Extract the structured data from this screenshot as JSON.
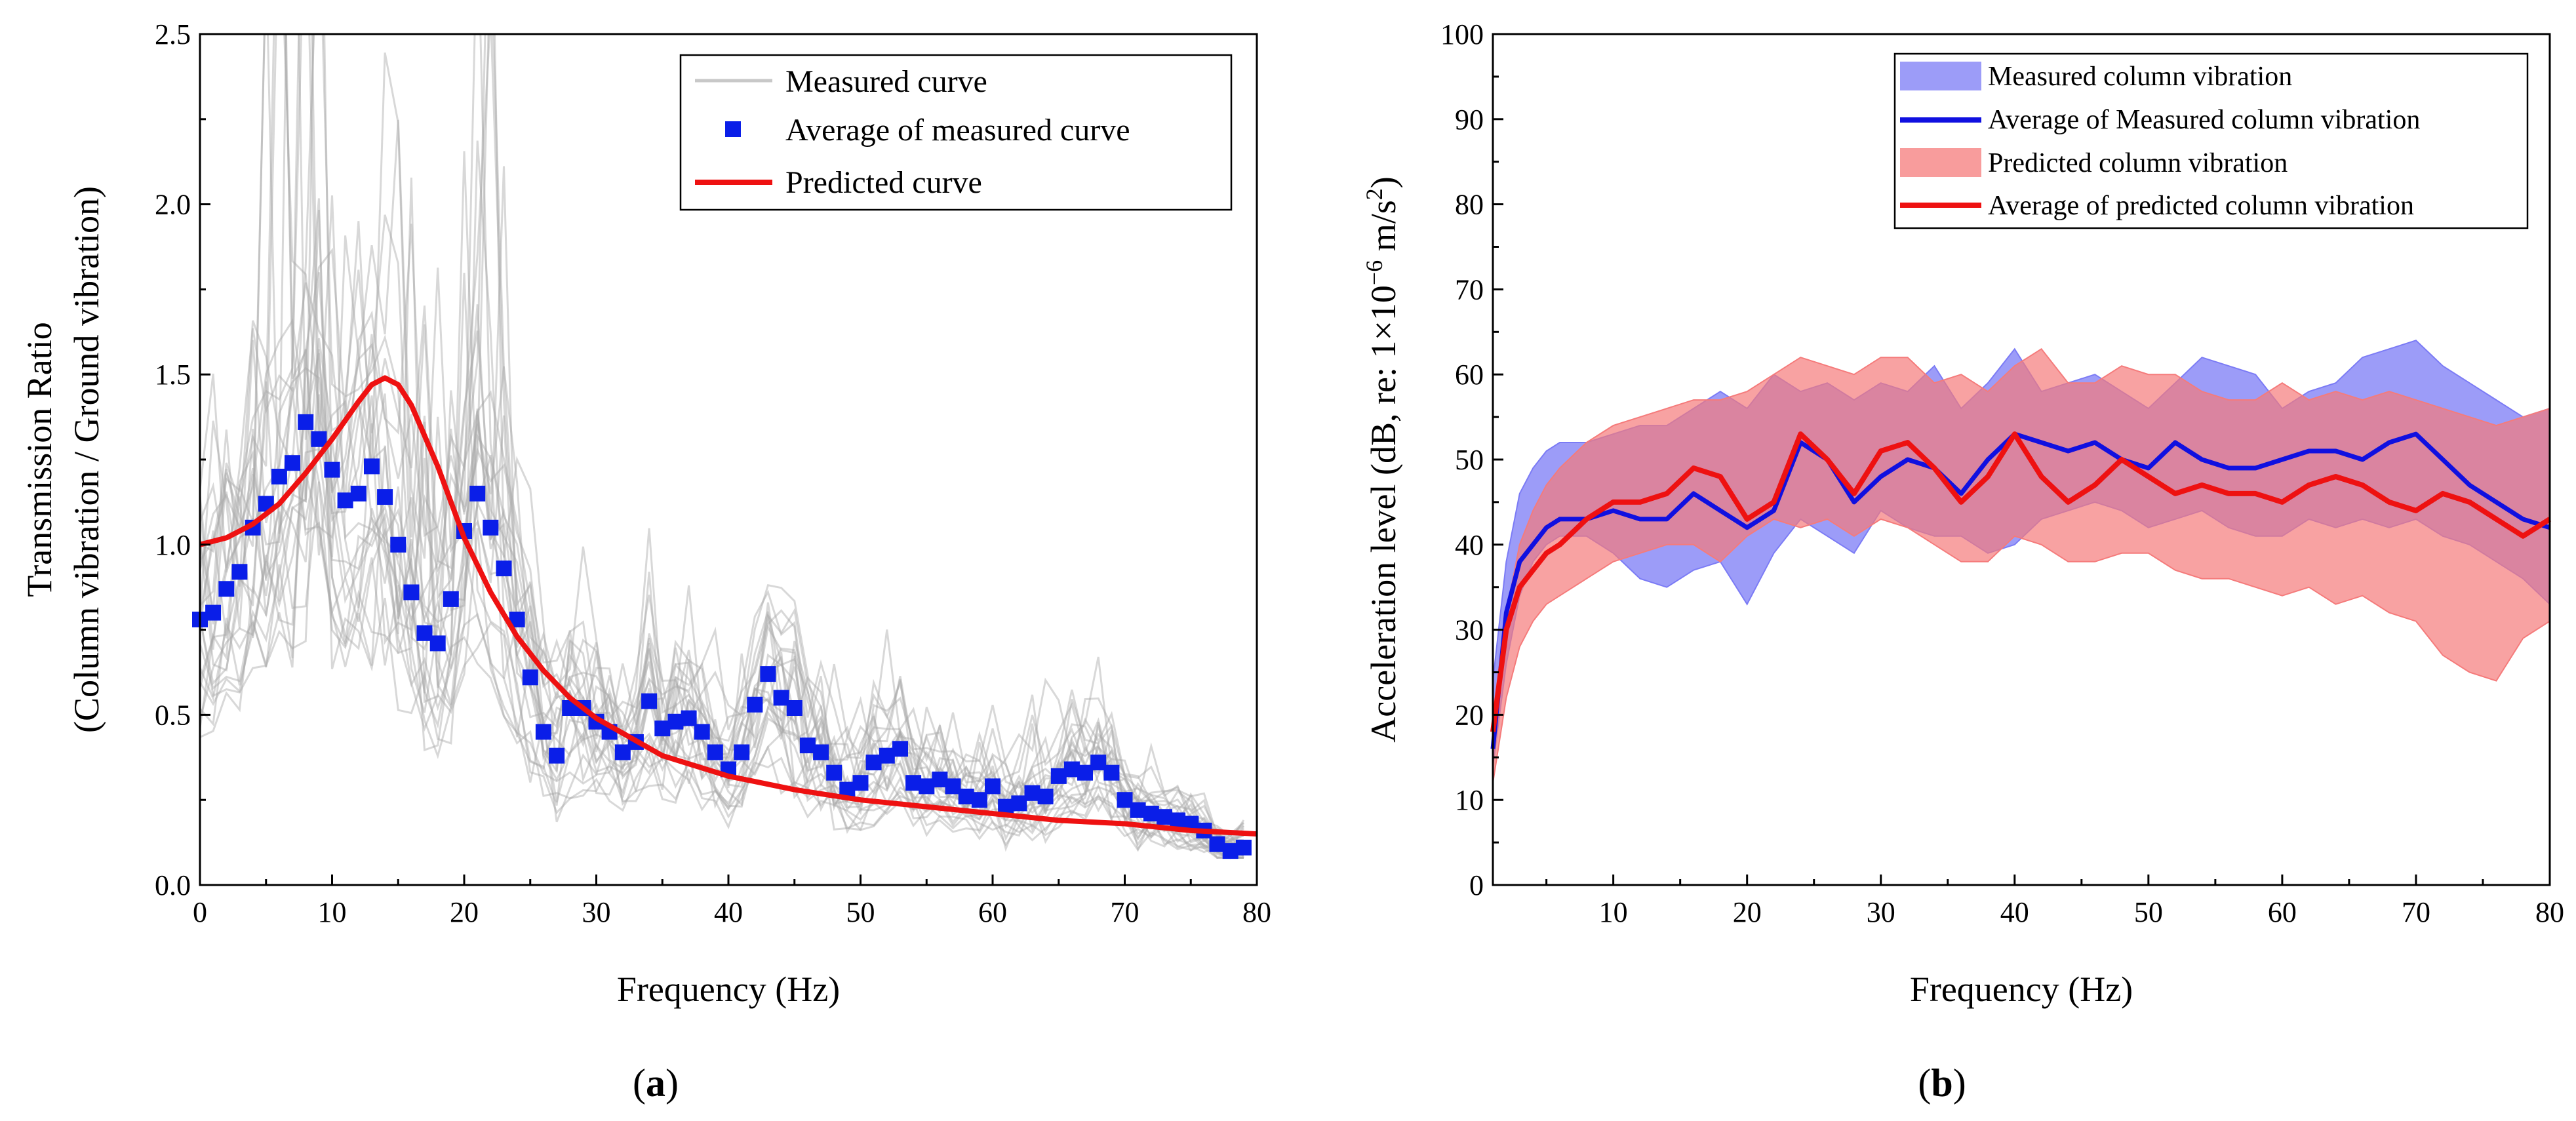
{
  "chart_data": [
    {
      "id": "a",
      "type": "line",
      "caption": "(a)",
      "caption_letter": "a",
      "xlabel": "Frequency (Hz)",
      "ylabel_line1": "Transmission Ratio",
      "ylabel_line2": "(Column vibration / Ground vibration)",
      "xlim": [
        0,
        80
      ],
      "ylim": [
        0,
        2.5
      ],
      "xticks": [
        0,
        10,
        20,
        30,
        40,
        50,
        60,
        70,
        80
      ],
      "yticks": [
        0.0,
        0.5,
        1.0,
        1.5,
        2.0,
        2.5
      ],
      "ytick_labels": [
        "0.0",
        "0.5",
        "1.0",
        "1.5",
        "2.0",
        "2.5"
      ],
      "legend": {
        "position": "top-right",
        "entries": [
          "Measured curve",
          "Average of measured curve",
          "Predicted curve"
        ]
      },
      "colors": {
        "measured": "#a9a9a9",
        "average": "#0a1ee8",
        "predicted": "#ee1111"
      },
      "series": [
        {
          "name": "Average of measured curve",
          "style": "square-marker",
          "x": [
            0,
            1,
            2,
            3,
            4,
            5,
            6,
            7,
            8,
            9,
            10,
            11,
            12,
            13,
            14,
            15,
            16,
            17,
            18,
            19,
            20,
            21,
            22,
            23,
            24,
            25,
            26,
            27,
            28,
            29,
            30,
            31,
            32,
            33,
            34,
            35,
            36,
            37,
            38,
            39,
            40,
            41,
            42,
            43,
            44,
            45,
            46,
            47,
            48,
            49,
            50,
            51,
            52,
            53,
            54,
            55,
            56,
            57,
            58,
            59,
            60,
            61,
            62,
            63,
            64,
            65,
            66,
            67,
            68,
            69,
            70,
            71,
            72,
            73,
            74,
            75,
            76,
            77,
            78,
            79
          ],
          "y": [
            0.78,
            0.8,
            0.87,
            0.92,
            1.05,
            1.12,
            1.2,
            1.24,
            1.36,
            1.31,
            1.22,
            1.13,
            1.15,
            1.23,
            1.14,
            1.0,
            0.86,
            0.74,
            0.71,
            0.84,
            1.04,
            1.15,
            1.05,
            0.93,
            0.78,
            0.61,
            0.45,
            0.38,
            0.52,
            0.52,
            0.48,
            0.45,
            0.39,
            0.42,
            0.54,
            0.46,
            0.48,
            0.49,
            0.45,
            0.39,
            0.34,
            0.39,
            0.53,
            0.62,
            0.55,
            0.52,
            0.41,
            0.39,
            0.33,
            0.28,
            0.3,
            0.36,
            0.38,
            0.4,
            0.3,
            0.29,
            0.31,
            0.29,
            0.26,
            0.25,
            0.29,
            0.23,
            0.24,
            0.27,
            0.26,
            0.32,
            0.34,
            0.33,
            0.36,
            0.33,
            0.25,
            0.22,
            0.21,
            0.2,
            0.19,
            0.18,
            0.16,
            0.12,
            0.1,
            0.11
          ]
        },
        {
          "name": "Predicted curve",
          "style": "line",
          "x": [
            0,
            2,
            4,
            6,
            8,
            10,
            12,
            13,
            14,
            15,
            16,
            18,
            20,
            22,
            24,
            26,
            28,
            30,
            35,
            40,
            45,
            50,
            55,
            60,
            65,
            70,
            75,
            80
          ],
          "y": [
            1.0,
            1.02,
            1.06,
            1.12,
            1.21,
            1.31,
            1.42,
            1.47,
            1.49,
            1.47,
            1.41,
            1.23,
            1.02,
            0.86,
            0.73,
            0.63,
            0.55,
            0.49,
            0.38,
            0.32,
            0.28,
            0.25,
            0.23,
            0.21,
            0.19,
            0.18,
            0.16,
            0.15
          ]
        },
        {
          "name": "Measured curve",
          "style": "thin-lines",
          "count": 24,
          "description_bounds": "individual measured curves spread around the average, peaks up to about 2.5 between 5 and 25 Hz"
        }
      ]
    },
    {
      "id": "b",
      "type": "area",
      "caption": "(b)",
      "caption_letter": "b",
      "xlabel": "Frequency (Hz)",
      "ylabel": "Acceleration level (dB, re: 1×10⁻⁶ m/s²)",
      "xlim": [
        1,
        80
      ],
      "ylim": [
        0,
        100
      ],
      "xticks": [
        10,
        20,
        30,
        40,
        50,
        60,
        70,
        80
      ],
      "yticks": [
        0,
        10,
        20,
        30,
        40,
        50,
        60,
        70,
        80,
        90,
        100
      ],
      "legend": {
        "position": "top-right",
        "entries": [
          "Measured column vibration",
          "Average of Measured column vibration",
          "Predicted column vibration",
          "Average of predicted column vibration"
        ]
      },
      "colors": {
        "measured_band": "#7b7bf5",
        "measured_avg": "#1010e0",
        "predicted_band": "#f57b7b",
        "predicted_avg": "#ee1111"
      },
      "x": [
        1,
        2,
        3,
        4,
        5,
        6,
        8,
        10,
        12,
        14,
        16,
        18,
        20,
        22,
        24,
        26,
        28,
        30,
        32,
        34,
        36,
        38,
        40,
        42,
        44,
        46,
        48,
        50,
        52,
        54,
        56,
        58,
        60,
        62,
        64,
        66,
        68,
        70,
        72,
        74,
        76,
        78,
        80
      ],
      "series": [
        {
          "name": "Measured column vibration",
          "style": "band",
          "lower": [
            14,
            26,
            34,
            38,
            40,
            41,
            41,
            39,
            36,
            35,
            37,
            38,
            33,
            39,
            43,
            41,
            39,
            44,
            42,
            41,
            41,
            39,
            40,
            43,
            44,
            45,
            44,
            42,
            43,
            44,
            42,
            41,
            41,
            43,
            42,
            43,
            42,
            43,
            41,
            40,
            38,
            36,
            33
          ],
          "upper": [
            24,
            38,
            46,
            49,
            51,
            52,
            52,
            53,
            54,
            54,
            56,
            58,
            56,
            60,
            58,
            59,
            57,
            59,
            58,
            61,
            56,
            59,
            63,
            58,
            59,
            60,
            58,
            56,
            59,
            62,
            61,
            60,
            56,
            58,
            59,
            62,
            63,
            64,
            61,
            59,
            57,
            55,
            56
          ]
        },
        {
          "name": "Average of Measured column vibration",
          "style": "line",
          "values": [
            16,
            32,
            38,
            40,
            42,
            43,
            43,
            44,
            43,
            43,
            46,
            44,
            42,
            44,
            52,
            50,
            45,
            48,
            50,
            49,
            46,
            50,
            53,
            52,
            51,
            52,
            50,
            49,
            52,
            50,
            49,
            49,
            50,
            51,
            51,
            50,
            52,
            53,
            50,
            47,
            45,
            43,
            42
          ]
        },
        {
          "name": "Predicted column vibration",
          "style": "band",
          "lower": [
            12,
            22,
            28,
            31,
            33,
            34,
            36,
            38,
            39,
            40,
            40,
            38,
            41,
            43,
            42,
            43,
            41,
            43,
            42,
            40,
            38,
            38,
            41,
            40,
            38,
            38,
            39,
            39,
            37,
            36,
            36,
            35,
            34,
            35,
            33,
            34,
            32,
            31,
            27,
            25,
            24,
            29,
            31
          ],
          "upper": [
            20,
            32,
            40,
            44,
            47,
            49,
            52,
            54,
            55,
            56,
            57,
            57,
            58,
            60,
            62,
            61,
            60,
            62,
            62,
            59,
            60,
            58,
            61,
            63,
            59,
            59,
            61,
            60,
            60,
            58,
            57,
            57,
            59,
            57,
            58,
            57,
            58,
            57,
            56,
            55,
            54,
            55,
            56
          ]
        },
        {
          "name": "Average of predicted column vibration",
          "style": "line",
          "values": [
            18,
            30,
            35,
            37,
            39,
            40,
            43,
            45,
            45,
            46,
            49,
            48,
            43,
            45,
            53,
            50,
            46,
            51,
            52,
            49,
            45,
            48,
            53,
            48,
            45,
            47,
            50,
            48,
            46,
            47,
            46,
            46,
            45,
            47,
            48,
            47,
            45,
            44,
            46,
            45,
            43,
            41,
            43
          ]
        }
      ]
    }
  ]
}
